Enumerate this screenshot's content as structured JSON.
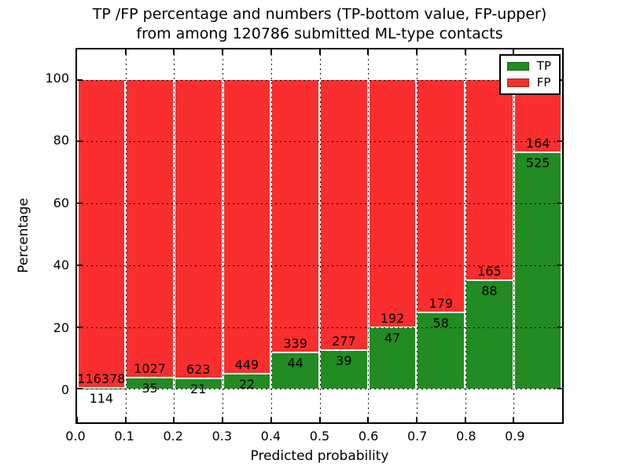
{
  "title": {
    "line1": "TP /FP percentage and numbers (TP-bottom value, FP-upper)",
    "line2": "from among 120786 submitted ML-type contacts"
  },
  "axes": {
    "xlabel": "Predicted probability",
    "ylabel": "Percentage",
    "x_ticks": [
      "0.0",
      "0.1",
      "0.2",
      "0.3",
      "0.4",
      "0.5",
      "0.6",
      "0.7",
      "0.8",
      "0.9"
    ],
    "y_ticks": [
      "0",
      "20",
      "40",
      "60",
      "80",
      "100"
    ],
    "y_tick_values": [
      0,
      20,
      40,
      60,
      80,
      100
    ]
  },
  "legend": {
    "items": [
      {
        "label": "TP",
        "color": "#228b22",
        "edge": "#135f13"
      },
      {
        "label": "FP",
        "color": "#fa2e2e",
        "edge": "#a02424"
      }
    ]
  },
  "colors": {
    "tp_green": "#228b22",
    "fp_red": "#fa2e2e",
    "grid": "#000000",
    "background": "#ffffff"
  },
  "chart_data": {
    "type": "bar",
    "stacked": true,
    "title": "TP /FP percentage and numbers (TP-bottom value, FP-upper) from among 120786 submitted ML-type contacts",
    "xlabel": "Predicted probability",
    "ylabel": "Percentage",
    "xlim": [
      0.0,
      1.0
    ],
    "ylim": [
      -10.8,
      109.8
    ],
    "bin_width": 0.1,
    "bin_starts": [
      0.0,
      0.1,
      0.2,
      0.3,
      0.4,
      0.5,
      0.6,
      0.7,
      0.8,
      0.9
    ],
    "series": [
      {
        "name": "TP",
        "color": "#228b22",
        "counts": [
          114,
          35,
          21,
          22,
          44,
          39,
          47,
          58,
          88,
          525
        ]
      },
      {
        "name": "FP",
        "color": "#fa2e2e",
        "counts": [
          116378,
          1027,
          623,
          449,
          339,
          277,
          192,
          179,
          165,
          164
        ]
      }
    ],
    "total_contacts": 120786,
    "bar_height_rule": "TP green segment height = TP/(TP+FP)*100 percent; FP red segment stacked on top up to 100 percent",
    "tp_percentages": [
      0.1,
      3.3,
      3.26,
      4.67,
      11.49,
      12.34,
      19.66,
      24.47,
      34.78,
      76.2
    ],
    "grid": "dotted black lines drawn on top of bars, vertical at each 0.1 and horizontal at each 20",
    "legend_position": "upper right"
  }
}
